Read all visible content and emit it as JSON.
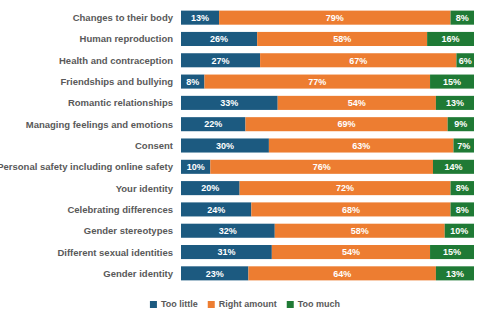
{
  "chart_data": {
    "type": "bar",
    "orientation": "horizontal",
    "stacked": true,
    "data_labels": true,
    "tick_labels": "y",
    "legend": "bottom",
    "categories": [
      "Changes to their body",
      "Human reproduction",
      "Health and contraception",
      "Friendships and bullying",
      "Romantic relationships",
      "Managing feelings and emotions",
      "Consent",
      "Personal safety including online safety",
      "Your identity",
      "Celebrating differences",
      "Gender stereotypes",
      "Different sexual identities",
      "Gender identity"
    ],
    "xlim": [
      0,
      100
    ],
    "series": [
      {
        "name": "Too little",
        "color": "#1c5a80",
        "values": [
          13,
          26,
          27,
          8,
          33,
          22,
          30,
          10,
          20,
          24,
          32,
          31,
          23
        ],
        "value_labels": [
          "13%",
          "26%",
          "27%",
          "8%",
          "33%",
          "22%",
          "30%",
          "10%",
          "20%",
          "24%",
          "32%",
          "31%",
          "23%"
        ]
      },
      {
        "name": "Right amount",
        "color": "#ed7d31",
        "values": [
          79,
          58,
          67,
          77,
          54,
          69,
          63,
          76,
          72,
          68,
          58,
          54,
          64
        ],
        "value_labels": [
          "79%",
          "58%",
          "67%",
          "77%",
          "54%",
          "69%",
          "63%",
          "76%",
          "72%",
          "68%",
          "58%",
          "54%",
          "64%"
        ]
      },
      {
        "name": "Too much",
        "color": "#1f7a35",
        "values": [
          8,
          16,
          6,
          15,
          13,
          9,
          7,
          14,
          8,
          8,
          10,
          15,
          13
        ],
        "value_labels": [
          "8%",
          "16%",
          "6%",
          "15%",
          "13%",
          "9%",
          "7%",
          "14%",
          "8%",
          "8%",
          "10%",
          "15%",
          "13%"
        ]
      }
    ]
  }
}
